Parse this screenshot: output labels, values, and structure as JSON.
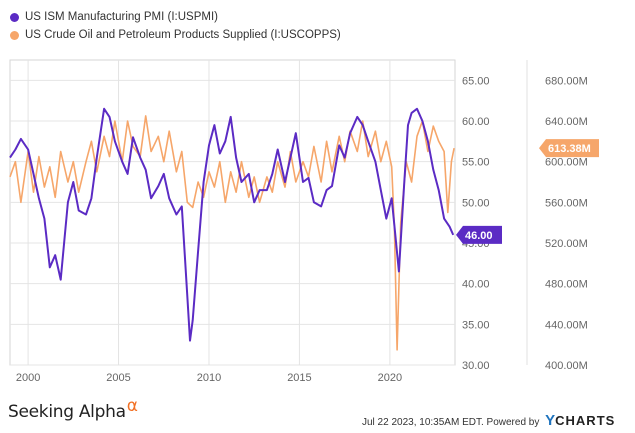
{
  "legend": [
    {
      "label": "US ISM Manufacturing PMI (I:USPMI)",
      "color": "#5b2bc4"
    },
    {
      "label": "US Crude Oil and Petroleum Products Supplied (I:USCOPPS)",
      "color": "#f6a66a"
    }
  ],
  "footer": {
    "brand": "Seeking Alpha",
    "brand_symbol": "α",
    "timestamp": "Jul 22 2023, 10:35AM EDT.",
    "powered_by": "Powered by",
    "ycharts_y": "Y",
    "ycharts_rest": "CHARTS"
  },
  "chart_data": {
    "type": "line",
    "x_range": [
      1999.0,
      2023.6
    ],
    "x_ticks": [
      {
        "value": 2000,
        "label": "2000"
      },
      {
        "value": 2005,
        "label": "2005"
      },
      {
        "value": 2010,
        "label": "2010"
      },
      {
        "value": 2015,
        "label": "2015"
      },
      {
        "value": 2020,
        "label": "2020"
      }
    ],
    "axes": {
      "left": {
        "range": [
          30,
          67.5
        ],
        "ticks": [
          {
            "value": 65,
            "label": "65.00"
          },
          {
            "value": 60,
            "label": "60.00"
          },
          {
            "value": 55,
            "label": "55.00"
          },
          {
            "value": 50,
            "label": "50.00"
          },
          {
            "value": 45,
            "label": "45.00"
          },
          {
            "value": 40,
            "label": "40.00"
          },
          {
            "value": 35,
            "label": "35.00"
          },
          {
            "value": 30,
            "label": "30.00"
          }
        ]
      },
      "right": {
        "range": [
          400,
          700
        ],
        "ticks": [
          {
            "value": 680,
            "label": "680.00M"
          },
          {
            "value": 640,
            "label": "640.00M"
          },
          {
            "value": 600,
            "label": "600.00M"
          },
          {
            "value": 560,
            "label": "560.00M"
          },
          {
            "value": 520,
            "label": "520.00M"
          },
          {
            "value": 480,
            "label": "480.00M"
          },
          {
            "value": 440,
            "label": "440.00M"
          },
          {
            "value": 400,
            "label": "400.00M"
          }
        ]
      }
    },
    "series": [
      {
        "name": "US ISM Manufacturing PMI (I:USPMI)",
        "axis": "left",
        "color": "#5b2bc4",
        "last_label": "46.00",
        "x": [
          1999.0,
          1999.3,
          1999.6,
          2000.0,
          2000.3,
          2000.6,
          2000.9,
          2001.2,
          2001.5,
          2001.8,
          2002.2,
          2002.5,
          2002.8,
          2003.2,
          2003.5,
          2003.8,
          2004.2,
          2004.5,
          2004.8,
          2005.2,
          2005.5,
          2005.8,
          2006.2,
          2006.5,
          2006.8,
          2007.2,
          2007.5,
          2007.8,
          2008.2,
          2008.5,
          2008.8,
          2008.95,
          2009.1,
          2009.4,
          2009.7,
          2010.0,
          2010.3,
          2010.6,
          2010.9,
          2011.2,
          2011.5,
          2011.8,
          2012.2,
          2012.5,
          2012.8,
          2013.2,
          2013.5,
          2013.8,
          2014.2,
          2014.5,
          2014.8,
          2015.2,
          2015.5,
          2015.8,
          2016.2,
          2016.5,
          2016.8,
          2017.2,
          2017.5,
          2017.8,
          2018.2,
          2018.5,
          2018.8,
          2019.2,
          2019.5,
          2019.8,
          2020.1,
          2020.3,
          2020.5,
          2020.8,
          2021.0,
          2021.2,
          2021.5,
          2021.8,
          2022.1,
          2022.4,
          2022.7,
          2023.0,
          2023.3,
          2023.5
        ],
        "values": [
          55.5,
          56.5,
          57.8,
          56.5,
          53.5,
          50.5,
          48.0,
          42.0,
          43.5,
          40.5,
          50.0,
          52.5,
          49.0,
          48.5,
          50.5,
          55.5,
          61.5,
          60.5,
          57.5,
          55.0,
          53.5,
          58.0,
          55.5,
          54.0,
          50.5,
          52.0,
          53.5,
          50.5,
          48.5,
          49.5,
          38.5,
          33.0,
          35.5,
          44.0,
          52.5,
          57.0,
          59.5,
          56.0,
          57.5,
          60.5,
          55.5,
          52.5,
          53.5,
          50.0,
          51.5,
          51.5,
          53.5,
          56.5,
          52.5,
          55.5,
          58.5,
          52.5,
          53.0,
          50.0,
          49.5,
          51.5,
          52.0,
          57.0,
          55.5,
          58.5,
          60.5,
          59.5,
          57.5,
          55.0,
          51.5,
          48.0,
          50.5,
          46.0,
          41.5,
          52.5,
          59.5,
          61.0,
          61.5,
          60.0,
          57.5,
          54.0,
          51.5,
          48.0,
          47.0,
          46.0
        ]
      },
      {
        "name": "US Crude Oil and Petroleum Products Supplied (I:USCOPPS)",
        "axis": "right",
        "color": "#f6a66a",
        "last_label": "613.38M",
        "x": [
          1999.0,
          1999.3,
          1999.6,
          2000.0,
          2000.3,
          2000.6,
          2000.9,
          2001.2,
          2001.5,
          2001.8,
          2002.2,
          2002.5,
          2002.8,
          2003.2,
          2003.5,
          2003.8,
          2004.2,
          2004.5,
          2004.8,
          2005.2,
          2005.5,
          2005.8,
          2006.2,
          2006.5,
          2006.8,
          2007.2,
          2007.5,
          2007.8,
          2008.2,
          2008.5,
          2008.8,
          2009.1,
          2009.4,
          2009.7,
          2010.0,
          2010.3,
          2010.6,
          2010.9,
          2011.2,
          2011.5,
          2011.8,
          2012.2,
          2012.5,
          2012.8,
          2013.2,
          2013.5,
          2013.8,
          2014.2,
          2014.5,
          2014.8,
          2015.2,
          2015.5,
          2015.8,
          2016.2,
          2016.5,
          2016.8,
          2017.2,
          2017.5,
          2017.8,
          2018.2,
          2018.5,
          2018.8,
          2019.2,
          2019.5,
          2019.8,
          2020.1,
          2020.25,
          2020.4,
          2020.6,
          2020.9,
          2021.2,
          2021.5,
          2021.8,
          2022.1,
          2022.4,
          2022.7,
          2023.0,
          2023.2,
          2023.4,
          2023.55
        ],
        "values": [
          585,
          600,
          560,
          610,
          570,
          605,
          575,
          595,
          565,
          610,
          580,
          600,
          570,
          600,
          620,
          590,
          625,
          605,
          640,
          600,
          640,
          615,
          605,
          645,
          610,
          625,
          600,
          630,
          590,
          610,
          560,
          555,
          580,
          565,
          590,
          575,
          600,
          560,
          590,
          570,
          600,
          565,
          585,
          560,
          585,
          570,
          600,
          575,
          610,
          580,
          600,
          585,
          615,
          580,
          620,
          590,
          625,
          600,
          630,
          610,
          640,
          605,
          630,
          600,
          620,
          595,
          535,
          415,
          540,
          600,
          580,
          625,
          640,
          610,
          635,
          620,
          610,
          550,
          600,
          613.38
        ]
      }
    ]
  }
}
